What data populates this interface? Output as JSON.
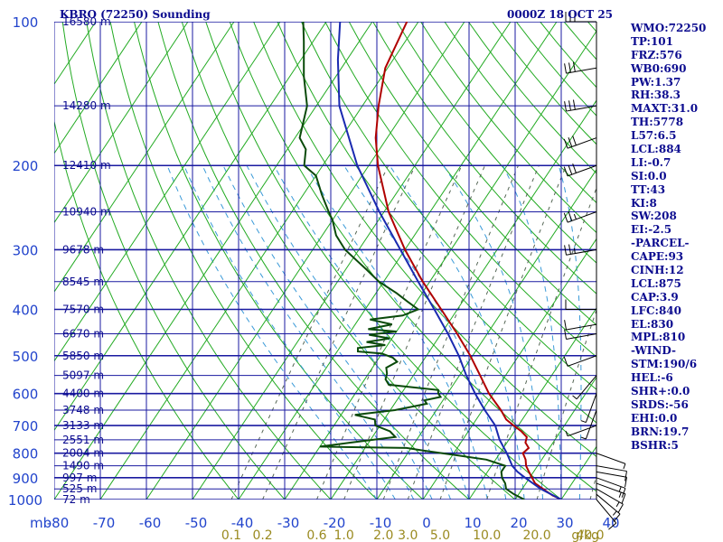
{
  "header": {
    "station": "KBRO (72250) Sounding",
    "time": "0000Z 18 OCT 25"
  },
  "indices": [
    "WMO:72250",
    "TP:101",
    "FRZ:576",
    "WB0:690",
    "PW:1.37",
    "RH:38.3",
    "MAXT:31.0",
    "TH:5778",
    "L57:6.5",
    "LCL:884",
    "LI:-0.7",
    "SI:0.0",
    "TT:43",
    "KI:8",
    "SW:208",
    "EI:-2.5",
    "-PARCEL-",
    "CAPE:93",
    "CINH:12",
    "LCL:875",
    "CAP:3.9",
    "LFC:840",
    "EL:830",
    "MPL:810",
    "-WIND-",
    "STM:190/6",
    "HEL:-6",
    "SHR+:0.0",
    "SRDS:-56",
    "EHI:0.0",
    "BRN:19.7",
    "BSHR:5"
  ],
  "chart_data": {
    "type": "line",
    "title": "KBRO (72250) Sounding",
    "ylabel": "mb",
    "pressure_axis": {
      "scale": "log",
      "range_mb": [
        1000,
        100
      ],
      "ticks": [
        100,
        200,
        300,
        400,
        500,
        600,
        700,
        800,
        900,
        1000
      ]
    },
    "temperature_axis": {
      "range_c": [
        -80,
        40
      ],
      "ticks": [
        -80,
        -70,
        -60,
        -50,
        -40,
        -30,
        -20,
        -10,
        0,
        10,
        20,
        30,
        40
      ],
      "skewed": true
    },
    "tick_labels": {
      "pressure": [
        "100",
        "200",
        "300",
        "400",
        "500",
        "600",
        "700",
        "800",
        "900",
        "1000"
      ],
      "temperature": [
        "-80",
        "-70",
        "-60",
        "-50",
        "-40",
        "-30",
        "-20",
        "-10",
        "0",
        "10",
        "20",
        "30",
        "40"
      ],
      "mixing_ratio": [
        "0.1",
        "0.2",
        "0.6",
        "1.0",
        "2.0",
        "3.0",
        "5.0",
        "10.0",
        "20.0",
        "40.0"
      ],
      "mixing_ratio_unit": "g/kg",
      "y_unit": "mb"
    },
    "height_labels": [
      {
        "p": 1000,
        "label": "72 m"
      },
      {
        "p": 950,
        "label": "525 m"
      },
      {
        "p": 900,
        "label": "997 m"
      },
      {
        "p": 850,
        "label": "1490 m"
      },
      {
        "p": 800,
        "label": "2004 m"
      },
      {
        "p": 750,
        "label": "2551 m"
      },
      {
        "p": 700,
        "label": "3133 m"
      },
      {
        "p": 650,
        "label": "3748 m"
      },
      {
        "p": 600,
        "label": "4400 m"
      },
      {
        "p": 550,
        "label": "5097 m"
      },
      {
        "p": 500,
        "label": "5850 m"
      },
      {
        "p": 450,
        "label": "6670 m"
      },
      {
        "p": 400,
        "label": "7570 m"
      },
      {
        "p": 350,
        "label": "8545 m"
      },
      {
        "p": 300,
        "label": "9678 m"
      },
      {
        "p": 250,
        "label": "10940 m"
      },
      {
        "p": 200,
        "label": "12410 m"
      },
      {
        "p": 150,
        "label": "14280 m"
      },
      {
        "p": 100,
        "label": "16580 m"
      }
    ],
    "mixing_ratio_lines": [
      0.1,
      0.2,
      0.6,
      1.0,
      2.0,
      3.0,
      5.0,
      10.0,
      20.0,
      40.0
    ],
    "series": [
      {
        "color": "#b00000",
        "points": [
          [
            1000,
            30.0
          ],
          [
            980,
            27.5
          ],
          [
            950,
            24.5
          ],
          [
            925,
            22.0
          ],
          [
            900,
            20.5
          ],
          [
            875,
            19.0
          ],
          [
            850,
            17.5
          ],
          [
            825,
            16.5
          ],
          [
            800,
            15.0
          ],
          [
            780,
            15.5
          ],
          [
            760,
            14.0
          ],
          [
            740,
            13.5
          ],
          [
            720,
            11.5
          ],
          [
            700,
            9.0
          ],
          [
            680,
            6.5
          ],
          [
            650,
            4.0
          ],
          [
            600,
            -1.0
          ],
          [
            550,
            -5.5
          ],
          [
            500,
            -10.5
          ],
          [
            450,
            -16.5
          ],
          [
            400,
            -23.5
          ],
          [
            350,
            -31.5
          ],
          [
            300,
            -40.0
          ],
          [
            250,
            -49.0
          ],
          [
            200,
            -58.0
          ],
          [
            175,
            -62.5
          ],
          [
            150,
            -66.5
          ],
          [
            125,
            -70.5
          ],
          [
            100,
            -72.5
          ]
        ]
      },
      {
        "color": "#0a4a0a",
        "points": [
          [
            1000,
            22.0
          ],
          [
            975,
            19.0
          ],
          [
            950,
            16.5
          ],
          [
            925,
            15.5
          ],
          [
            900,
            14.0
          ],
          [
            875,
            13.0
          ],
          [
            850,
            13.0
          ],
          [
            825,
            8.0
          ],
          [
            800,
            -2.5
          ],
          [
            790,
            -7.0
          ],
          [
            780,
            -11.0
          ],
          [
            775,
            -30.0
          ],
          [
            760,
            -24.0
          ],
          [
            740,
            -15.0
          ],
          [
            720,
            -17.0
          ],
          [
            700,
            -21.0
          ],
          [
            680,
            -22.0
          ],
          [
            665,
            -27.0
          ],
          [
            650,
            -19.0
          ],
          [
            640,
            -16.0
          ],
          [
            630,
            -13.0
          ],
          [
            620,
            -14.0
          ],
          [
            610,
            -11.0
          ],
          [
            600,
            -12.0
          ],
          [
            590,
            -12.5
          ],
          [
            575,
            -24.0
          ],
          [
            560,
            -25.5
          ],
          [
            545,
            -26.0
          ],
          [
            530,
            -27.0
          ],
          [
            515,
            -25.5
          ],
          [
            505,
            -27.0
          ],
          [
            495,
            -30.0
          ],
          [
            490,
            -35.5
          ],
          [
            482,
            -36.0
          ],
          [
            475,
            -30.5
          ],
          [
            468,
            -35.0
          ],
          [
            460,
            -30.5
          ],
          [
            452,
            -35.5
          ],
          [
            445,
            -30.0
          ],
          [
            440,
            -36.5
          ],
          [
            430,
            -32.0
          ],
          [
            420,
            -37.5
          ],
          [
            412,
            -31.0
          ],
          [
            400,
            -28.5
          ],
          [
            385,
            -32.0
          ],
          [
            370,
            -35.5
          ],
          [
            350,
            -41.0
          ],
          [
            330,
            -45.5
          ],
          [
            300,
            -53.0
          ],
          [
            280,
            -57.0
          ],
          [
            260,
            -60.0
          ],
          [
            250,
            -62.0
          ],
          [
            230,
            -66.0
          ],
          [
            210,
            -70.0
          ],
          [
            200,
            -74.0
          ],
          [
            185,
            -76.0
          ],
          [
            175,
            -79.0
          ],
          [
            150,
            -82.0
          ],
          [
            130,
            -87.0
          ],
          [
            110,
            -92.0
          ],
          [
            100,
            -95.0
          ]
        ]
      },
      {
        "color": "#1a2ab0",
        "points": [
          [
            1000,
            30.0
          ],
          [
            950,
            24.0
          ],
          [
            900,
            19.0
          ],
          [
            875,
            16.5
          ],
          [
            850,
            14.5
          ],
          [
            800,
            11.5
          ],
          [
            750,
            8.0
          ],
          [
            700,
            5.0
          ],
          [
            650,
            0.5
          ],
          [
            600,
            -4.0
          ],
          [
            550,
            -8.5
          ],
          [
            500,
            -13.0
          ],
          [
            450,
            -18.5
          ],
          [
            400,
            -25.0
          ],
          [
            350,
            -32.5
          ],
          [
            300,
            -41.0
          ],
          [
            250,
            -51.0
          ],
          [
            200,
            -62.5
          ],
          [
            150,
            -75.0
          ],
          [
            120,
            -82.0
          ],
          [
            100,
            -87.0
          ]
        ]
      }
    ],
    "winds": [
      {
        "p": 1000,
        "dir": 140,
        "spd": 10
      },
      {
        "p": 975,
        "dir": 130,
        "spd": 15
      },
      {
        "p": 950,
        "dir": 120,
        "spd": 15
      },
      {
        "p": 925,
        "dir": 110,
        "spd": 15
      },
      {
        "p": 900,
        "dir": 110,
        "spd": 15
      },
      {
        "p": 875,
        "dir": 100,
        "spd": 10
      },
      {
        "p": 850,
        "dir": 100,
        "spd": 10
      },
      {
        "p": 800,
        "dir": 110,
        "spd": 5
      },
      {
        "p": 700,
        "dir": 250,
        "spd": 5
      },
      {
        "p": 650,
        "dir": 200,
        "spd": 5
      },
      {
        "p": 600,
        "dir": 200,
        "spd": 5
      },
      {
        "p": 550,
        "dir": 220,
        "spd": 5
      },
      {
        "p": 500,
        "dir": 250,
        "spd": 10
      },
      {
        "p": 450,
        "dir": 260,
        "spd": 10
      },
      {
        "p": 430,
        "dir": 260,
        "spd": 10
      },
      {
        "p": 400,
        "dir": 270,
        "spd": 10
      },
      {
        "p": 300,
        "dir": 260,
        "spd": 25
      },
      {
        "p": 250,
        "dir": 250,
        "spd": 25
      },
      {
        "p": 200,
        "dir": 250,
        "spd": 30
      },
      {
        "p": 175,
        "dir": 250,
        "spd": 30
      },
      {
        "p": 150,
        "dir": 260,
        "spd": 30
      },
      {
        "p": 125,
        "dir": 260,
        "spd": 30
      },
      {
        "p": 100,
        "dir": 270,
        "spd": 30
      }
    ]
  }
}
